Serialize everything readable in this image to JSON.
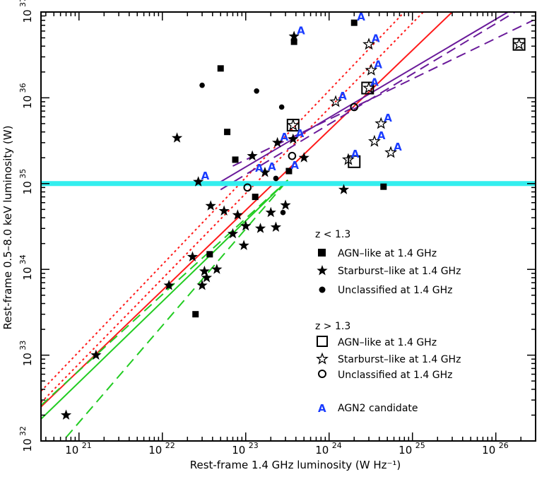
{
  "chart_data": {
    "type": "scatter",
    "xlabel": "Rest-frame 1.4 GHz luminosity (W Hz⁻¹)",
    "ylabel": "Rest-frame 0.5–8.0 keV luminosity (W)",
    "x_log": true,
    "y_log": true,
    "xlim": [
      3.5e+20,
      3e+26
    ],
    "ylim": [
      1e+32,
      1e+37
    ],
    "x_tick_exponents": [
      21,
      22,
      23,
      24,
      25,
      26
    ],
    "y_tick_exponents": [
      32,
      33,
      34,
      35,
      36,
      37
    ],
    "hline": {
      "y": 1e+35,
      "color": "#33eeee"
    },
    "colors": {
      "red": "#ff1a1a",
      "green": "#22cc22",
      "purple": "#6a1a9a",
      "agn2": "#1a3cff",
      "cyan": "#33eeee"
    },
    "fit_lines": [
      {
        "color": "red",
        "style": "solid",
        "x": [
          3.5e+20,
          3e+25
        ],
        "y": [
          2.5e+32,
          1e+37
        ]
      },
      {
        "color": "red",
        "style": "dotted",
        "x": [
          3.5e+20,
          8e+24
        ],
        "y": [
          3.8e+32,
          1e+37
        ]
      },
      {
        "color": "red",
        "style": "dotted",
        "x": [
          3.5e+20,
          1.35e+25
        ],
        "y": [
          2.8e+32,
          1e+37
        ]
      },
      {
        "color": "green",
        "style": "solid",
        "x": [
          3.5e+20,
          3.2e+23
        ],
        "y": [
          1.8e+32,
          1.1e+35
        ]
      },
      {
        "color": "green",
        "style": "dashed",
        "x": [
          3.5e+20,
          3.2e+23
        ],
        "y": [
          2.6e+32,
          1.1e+35
        ]
      },
      {
        "color": "green",
        "style": "dashed",
        "x": [
          7e+20,
          3.2e+23
        ],
        "y": [
          1.1e+32,
          1.1e+35
        ]
      },
      {
        "color": "purple",
        "style": "solid",
        "x": [
          5e+22,
          1.4e+26
        ],
        "y": [
          1.05e+35,
          1e+37
        ]
      },
      {
        "color": "purple",
        "style": "dashed",
        "x": [
          5e+22,
          1.7e+26
        ],
        "y": [
          8.5e+34,
          1e+37
        ]
      },
      {
        "color": "purple",
        "style": "dashed",
        "x": [
          7e+22,
          2.8e+26
        ],
        "y": [
          1.6e+35,
          8e+36
        ]
      }
    ],
    "series": [
      {
        "name": "AGN–like at 1.4 GHz",
        "group": "z < 1.3",
        "marker": "square-filled",
        "points": [
          [
            2.5e+22,
            3e+33
          ],
          [
            3.7e+22,
            1.5e+34
          ],
          [
            5e+22,
            2.2e+36
          ],
          [
            6e+22,
            4e+35
          ],
          [
            7.5e+22,
            1.9e+35
          ],
          [
            1.3e+23,
            7e+34
          ],
          [
            3.3e+23,
            1.4e+35
          ],
          [
            3.8e+23,
            4.5e+36
          ],
          [
            2e+24,
            7.5e+36
          ],
          [
            4.5e+24,
            9.2e+34
          ]
        ]
      },
      {
        "name": "Starburst–like at 1.4 GHz",
        "group": "z < 1.3",
        "marker": "star-filled",
        "points": [
          [
            7e+20,
            2e+32
          ],
          [
            1.6e+21,
            1e+33
          ],
          [
            1.2e+22,
            6.5e+33
          ],
          [
            2.3e+22,
            1.4e+34
          ],
          [
            2.7e+22,
            1.05e+35
          ],
          [
            3e+22,
            6.5e+33
          ],
          [
            3.2e+22,
            9.5e+33
          ],
          [
            3.4e+22,
            8e+33
          ],
          [
            3.8e+22,
            5.5e+34
          ],
          [
            4.5e+22,
            1e+34
          ],
          [
            5.5e+22,
            4.8e+34
          ],
          [
            7e+22,
            2.6e+34
          ],
          [
            8e+22,
            4.3e+34
          ],
          [
            9.5e+22,
            1.9e+34
          ],
          [
            1e+23,
            3.2e+34
          ],
          [
            1.2e+23,
            2.1e+35
          ],
          [
            1.5e+23,
            3e+34
          ],
          [
            1.7e+23,
            1.35e+35
          ],
          [
            2e+23,
            4.6e+34
          ],
          [
            2.3e+23,
            3.1e+34
          ],
          [
            2.4e+23,
            3e+35
          ],
          [
            3e+23,
            5.6e+34
          ],
          [
            3.7e+23,
            3.3e+35
          ],
          [
            3.8e+23,
            5.2e+36
          ],
          [
            5e+23,
            2e+35
          ],
          [
            1.5e+24,
            8.5e+34
          ],
          [
            1.5e+22,
            3.4e+35
          ]
        ]
      },
      {
        "name": "Unclassified at 1.4 GHz",
        "group": "z < 1.3",
        "marker": "circle-filled",
        "points": [
          [
            1.2e+22,
            6.5e+33
          ],
          [
            3e+22,
            1.4e+36
          ],
          [
            1.35e+23,
            1.2e+36
          ],
          [
            2.3e+23,
            1.15e+35
          ],
          [
            2.7e+23,
            7.8e+35
          ],
          [
            2.8e+23,
            4.6e+34
          ]
        ]
      },
      {
        "name": "AGN–like at 1.4 GHz",
        "group": "z > 1.3",
        "marker": "square-open",
        "points": [
          [
            2e+24,
            1.8e+35
          ],
          [
            2.9e+24,
            1.3e+36
          ],
          [
            3.7e+23,
            4.8e+35
          ],
          [
            1.9e+26,
            4.2e+36
          ]
        ]
      },
      {
        "name": "Starburst–like at 1.4 GHz",
        "group": "z > 1.3",
        "marker": "star-open",
        "points": [
          [
            3.7e+23,
            4.8e+35
          ],
          [
            1.9e+26,
            4.2e+36
          ],
          [
            1.2e+24,
            9e+35
          ],
          [
            3e+24,
            1.3e+36
          ],
          [
            3e+24,
            4.2e+36
          ],
          [
            3.2e+24,
            2.1e+36
          ],
          [
            3.5e+24,
            3.1e+35
          ],
          [
            4.2e+24,
            5e+35
          ],
          [
            5.5e+24,
            2.3e+35
          ],
          [
            1.7e+24,
            1.9e+35
          ]
        ]
      },
      {
        "name": "Unclassified at 1.4 GHz",
        "group": "z > 1.3",
        "marker": "circle-open",
        "points": [
          [
            1.05e+23,
            9e+34
          ],
          [
            3.6e+23,
            2.1e+35
          ],
          [
            2e+24,
            7.8e+35
          ]
        ]
      }
    ],
    "agn2_candidates": [
      [
        2.7e+22,
        1.05e+35
      ],
      [
        1.2e+23,
        1.3e+35
      ],
      [
        1.7e+23,
        1.35e+35
      ],
      [
        2.4e+23,
        3e+35
      ],
      [
        3.2e+23,
        1.4e+35
      ],
      [
        3.7e+23,
        3.3e+35
      ],
      [
        3.8e+23,
        5.2e+36
      ],
      [
        1.2e+24,
        9e+35
      ],
      [
        1.7e+24,
        1.9e+35
      ],
      [
        2e+24,
        7.5e+36
      ],
      [
        2.9e+24,
        1.3e+36
      ],
      [
        3e+24,
        4.2e+36
      ],
      [
        3.2e+24,
        2.1e+36
      ],
      [
        3.5e+24,
        3.1e+35
      ],
      [
        4.2e+24,
        5e+35
      ],
      [
        5.5e+24,
        2.3e+35
      ]
    ],
    "legend": {
      "group1_title": "z < 1.3",
      "group1": [
        "AGN–like at 1.4 GHz",
        "Starburst–like at 1.4 GHz",
        "Unclassified at 1.4 GHz"
      ],
      "group2_title": "z > 1.3",
      "group2": [
        "AGN–like at 1.4 GHz",
        "Starburst–like at 1.4 GHz",
        "Unclassified at 1.4 GHz"
      ],
      "agn2_symbol": "A",
      "agn2_label": "AGN2 candidate"
    }
  }
}
